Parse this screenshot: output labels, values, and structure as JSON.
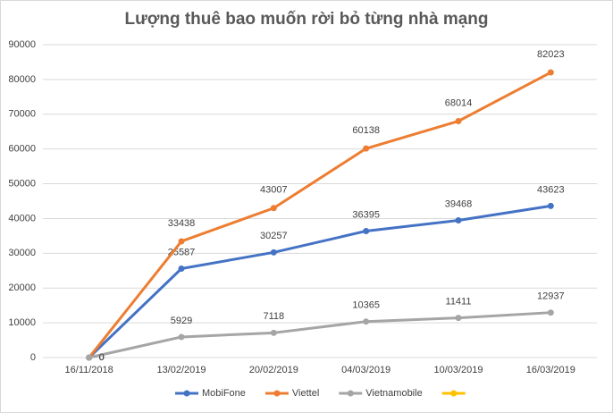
{
  "chart_data": {
    "type": "line",
    "title": "Lượng thuê bao muốn rời bỏ từng nhà mạng",
    "categories": [
      "16/11/2018",
      "13/02/2019",
      "20/02/2019",
      "04/03/2019",
      "10/03/2019",
      "16/03/2019"
    ],
    "series": [
      {
        "name": "MobiFone",
        "color": "#4472c4",
        "values": [
          0,
          25587,
          30257,
          36395,
          39468,
          43623
        ]
      },
      {
        "name": "Viettel",
        "color": "#ed7d31",
        "values": [
          0,
          33438,
          43007,
          60138,
          68014,
          82023
        ]
      },
      {
        "name": "Vietnamobile",
        "color": "#a5a5a5",
        "values": [
          0,
          5929,
          7118,
          10365,
          11411,
          12937
        ]
      },
      {
        "color": "#ffc000",
        "values": [
          null,
          null,
          null,
          null,
          null,
          null
        ]
      }
    ],
    "ylim": [
      0,
      90000
    ],
    "yticks": [
      0,
      10000,
      20000,
      30000,
      40000,
      50000,
      60000,
      70000,
      80000,
      90000
    ],
    "grid": true,
    "legend": "bottom"
  }
}
